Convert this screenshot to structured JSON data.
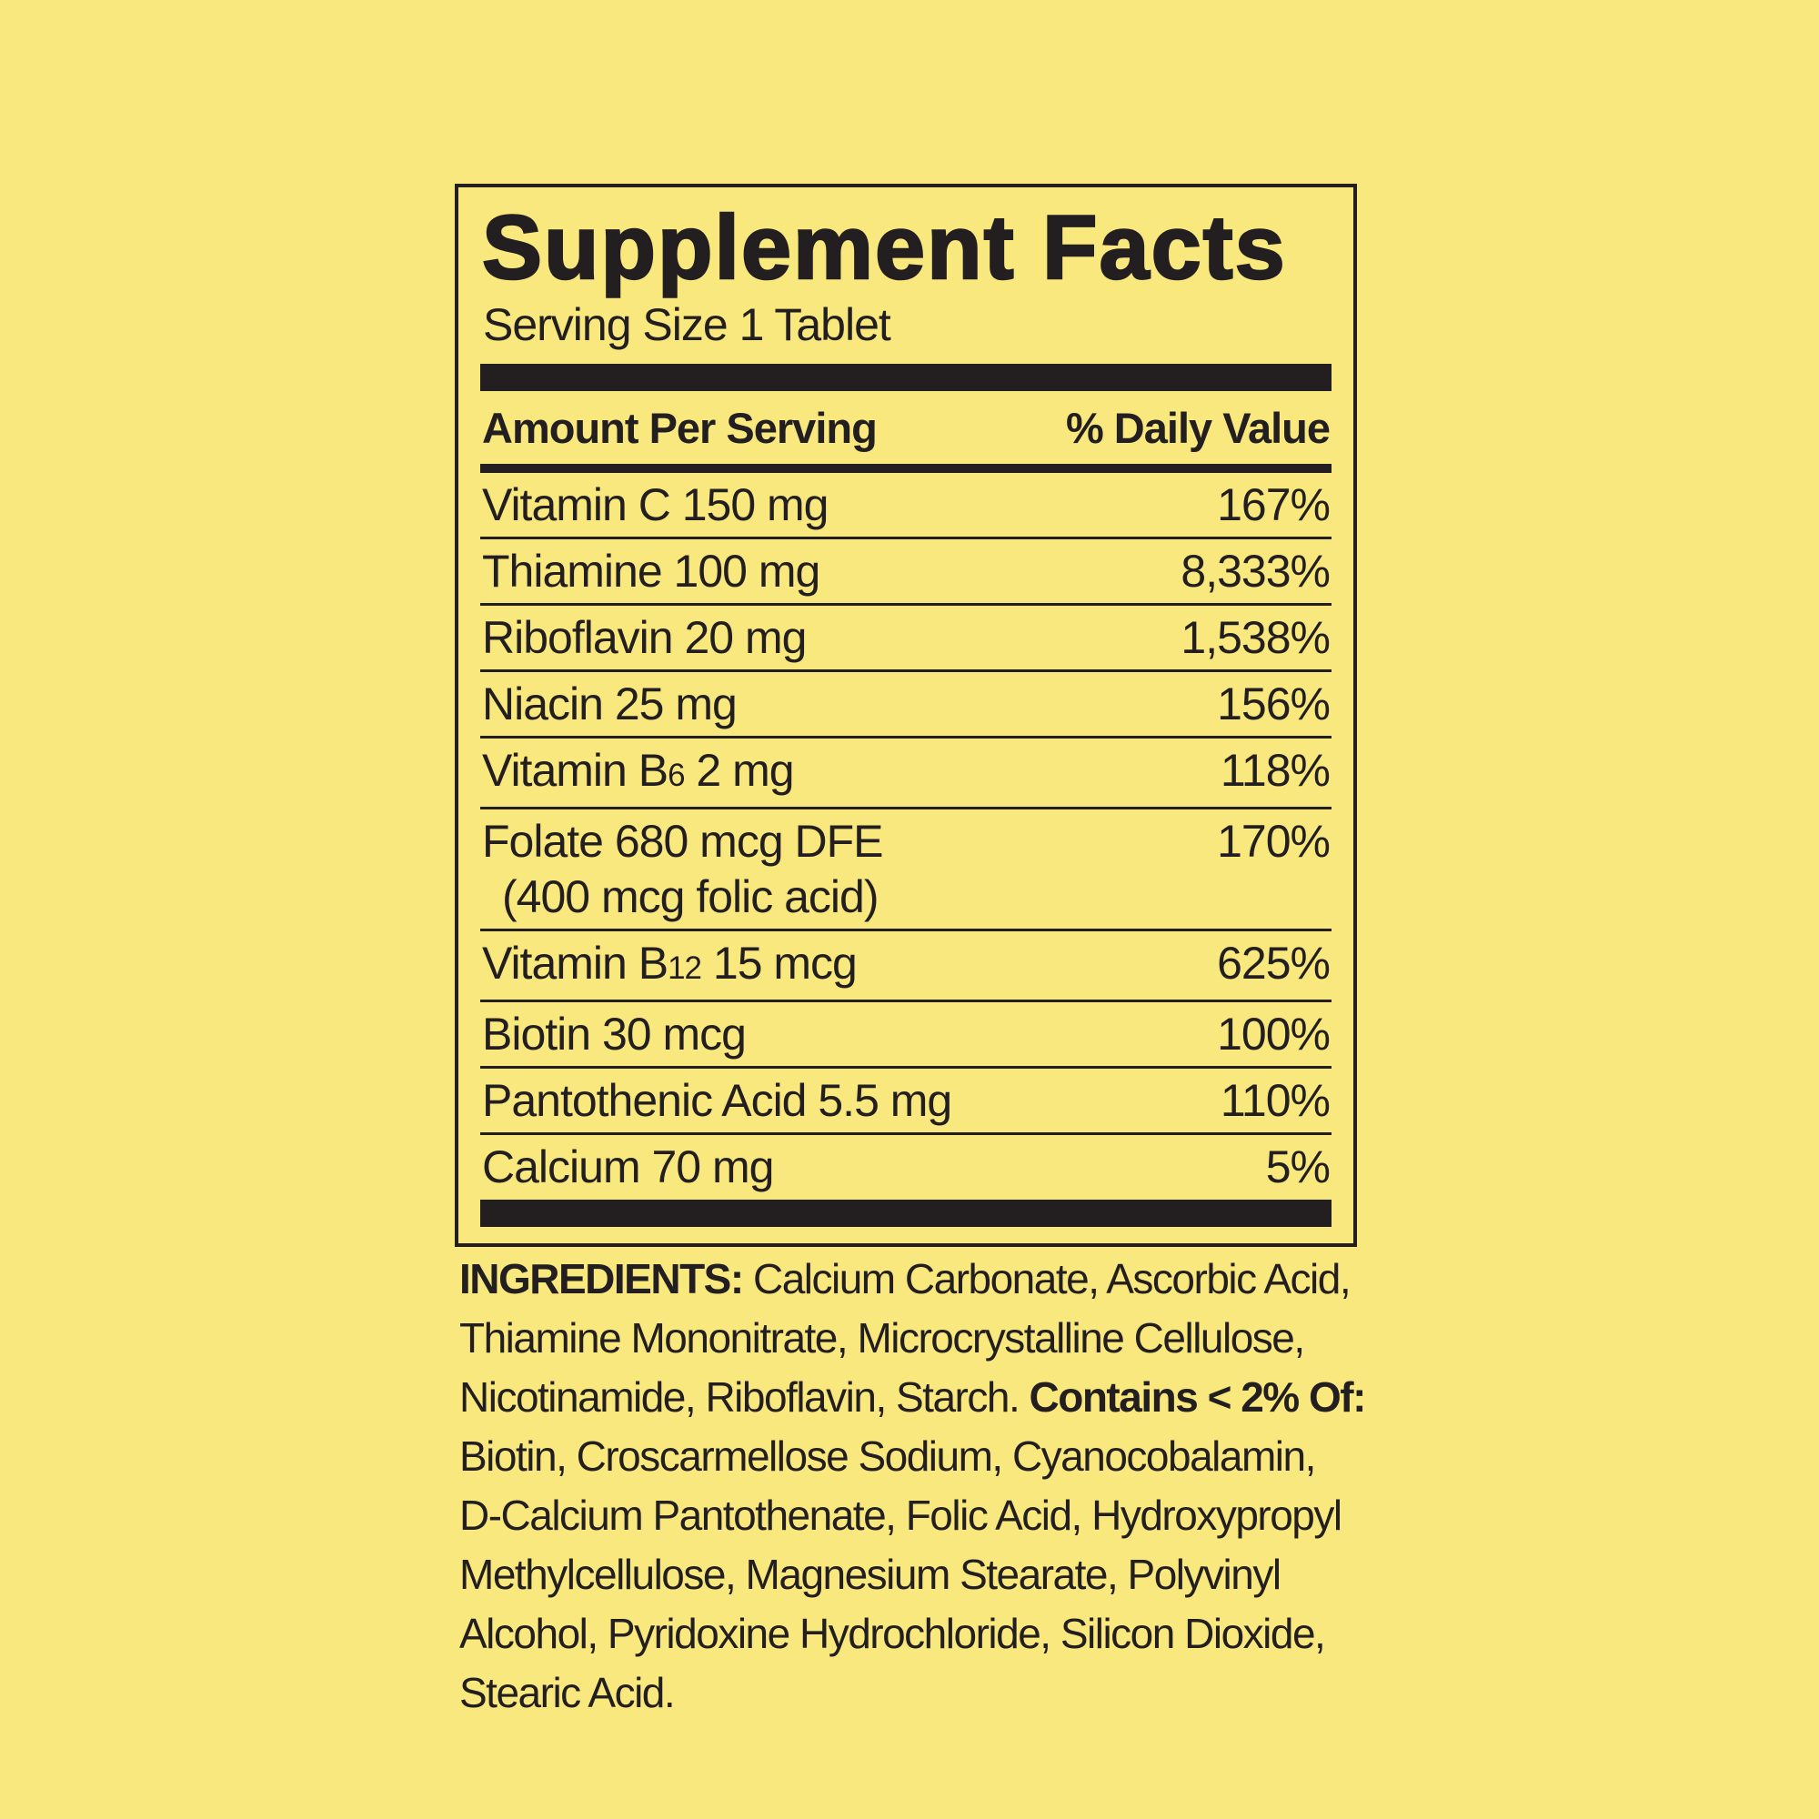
{
  "colors": {
    "background": "#f9e87e",
    "ink": "#231f20"
  },
  "label": {
    "title": "Supplement Facts",
    "serving_size": "Serving Size 1 Tablet",
    "columns": {
      "amount": "Amount Per Serving",
      "daily_value": "% Daily Value"
    },
    "rows": [
      {
        "name_parts": [
          {
            "t": "Vitamin C 150 mg"
          }
        ],
        "dv": "167%"
      },
      {
        "name_parts": [
          {
            "t": "Thiamine 100 mg"
          }
        ],
        "dv": "8,333%"
      },
      {
        "name_parts": [
          {
            "t": "Riboflavin 20 mg"
          }
        ],
        "dv": "1,538%"
      },
      {
        "name_parts": [
          {
            "t": "Niacin 25 mg"
          }
        ],
        "dv": "156%"
      },
      {
        "name_parts": [
          {
            "t": "Vitamin B"
          },
          {
            "t": "6",
            "small": true
          },
          {
            "t": " 2 mg"
          }
        ],
        "dv": "118%"
      },
      {
        "name_parts": [
          {
            "t": "Folate 680 mcg DFE"
          }
        ],
        "name_line2": "(400 mcg folic acid)",
        "dv": "170%"
      },
      {
        "name_parts": [
          {
            "t": "Vitamin B"
          },
          {
            "t": "12",
            "small": true
          },
          {
            "t": " 15 mcg"
          }
        ],
        "dv": "625%"
      },
      {
        "name_parts": [
          {
            "t": "Biotin 30 mcg"
          }
        ],
        "dv": "100%"
      },
      {
        "name_parts": [
          {
            "t": "Pantothenic Acid 5.5 mg"
          }
        ],
        "dv": "110%"
      },
      {
        "name_parts": [
          {
            "t": "Calcium 70 mg"
          }
        ],
        "dv": "5%"
      }
    ]
  },
  "ingredients": {
    "full_text": "INGREDIENTS: Calcium Carbonate, Ascorbic Acid, Thiamine Mononitrate, Microcrystalline Cellulose, Nicotinamide, Riboflavin, Starch. Contains < 2% Of: Biotin, Croscarmellose Sodium, Cyanocobalamin, D-Calcium Pantothenate, Folic Acid, Hydroxypropyl Methylcellulose, Magnesium Stearate, Polyvinyl Alcohol, Pyridoxine Hydrochloride, Silicon Dioxide, Stearic Acid.",
    "lines": [
      [
        {
          "t": "INGREDIENTS:",
          "bold": true
        },
        {
          "t": " Calcium Carbonate, Ascorbic Acid,"
        }
      ],
      [
        {
          "t": "Thiamine Mononitrate, Microcrystalline Cellulose,"
        }
      ],
      [
        {
          "t": "Nicotinamide, Riboflavin, Starch. "
        },
        {
          "t": "Contains < 2% Of:",
          "bold": true
        }
      ],
      [
        {
          "t": "Biotin, Croscarmellose Sodium, Cyanocobalamin,"
        }
      ],
      [
        {
          "t": "D-Calcium Pantothenate, Folic Acid, Hydroxypropyl"
        }
      ],
      [
        {
          "t": "Methylcellulose, Magnesium Stearate, Polyvinyl"
        }
      ],
      [
        {
          "t": "Alcohol, Pyridoxine Hydrochloride, Silicon Dioxide,"
        }
      ],
      [
        {
          "t": "Stearic Acid."
        }
      ]
    ]
  }
}
